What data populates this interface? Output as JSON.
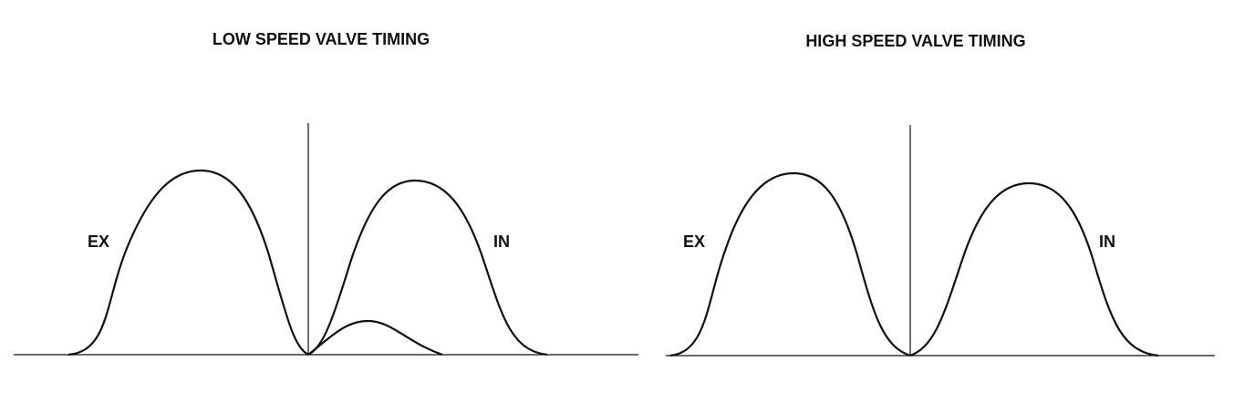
{
  "panels": [
    {
      "title": "LOW SPEED VALVE TIMING",
      "exhaust_label": "EX",
      "intake_label": "IN"
    },
    {
      "title": "HIGH SPEED VALVE TIMING",
      "exhaust_label": "EX",
      "intake_label": "IN"
    }
  ]
}
